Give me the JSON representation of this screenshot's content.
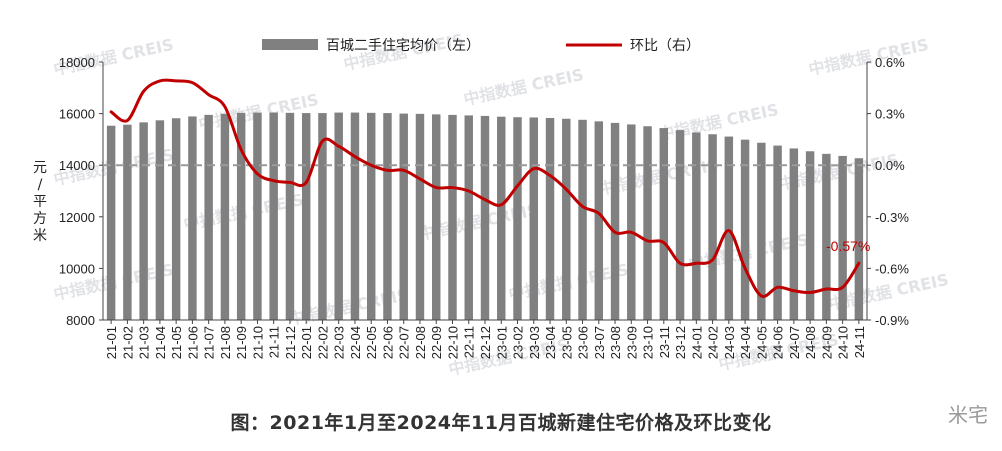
{
  "chart_data": {
    "type": "bar+line",
    "title": "图：2021年1月至2024年11月百城新建住宅价格及环比变化",
    "left_axis": {
      "label": "元/平方米",
      "ylim": [
        8000,
        18000
      ],
      "ticks": [
        "8000",
        "10000",
        "12000",
        "14000",
        "16000",
        "18000"
      ]
    },
    "right_axis": {
      "ylim": [
        -0.9,
        0.6
      ],
      "ticks": [
        "-0.9%",
        "-0.6%",
        "-0.3%",
        "0.0%",
        "0.3%",
        "0.6%"
      ]
    },
    "legend": [
      {
        "name": "百城二手住宅均价（左）",
        "color": "#808080",
        "kind": "bar"
      },
      {
        "name": "环比（右）",
        "color": "#c00000",
        "kind": "line"
      }
    ],
    "categories": [
      "21-01",
      "21-02",
      "21-03",
      "21-04",
      "21-05",
      "21-06",
      "21-07",
      "21-08",
      "21-09",
      "21-10",
      "21-11",
      "21-12",
      "22-01",
      "22-02",
      "22-03",
      "22-04",
      "22-05",
      "22-06",
      "22-07",
      "22-08",
      "22-09",
      "22-10",
      "22-11",
      "22-12",
      "23-01",
      "23-02",
      "23-03",
      "23-04",
      "23-05",
      "23-06",
      "23-07",
      "23-08",
      "23-09",
      "23-10",
      "23-11",
      "23-12",
      "24-01",
      "24-02",
      "24-03",
      "24-04",
      "24-05",
      "24-06",
      "24-07",
      "24-08",
      "24-09",
      "24-10",
      "24-11"
    ],
    "series": [
      {
        "name": "百城二手住宅均价（左）",
        "axis": "left",
        "type": "bar",
        "color": "#808080",
        "values": [
          15530,
          15570,
          15660,
          15740,
          15820,
          15890,
          15950,
          15990,
          16030,
          16040,
          16040,
          16030,
          16020,
          16020,
          16040,
          16040,
          16030,
          16020,
          16000,
          15990,
          15970,
          15950,
          15930,
          15910,
          15880,
          15860,
          15850,
          15830,
          15800,
          15760,
          15700,
          15640,
          15580,
          15510,
          15440,
          15360,
          15270,
          15200,
          15110,
          14990,
          14870,
          14760,
          14650,
          14540,
          14440,
          14360,
          14270
        ]
      },
      {
        "name": "环比（右）",
        "axis": "right",
        "type": "line",
        "color": "#c00000",
        "values": [
          0.31,
          0.26,
          0.43,
          0.49,
          0.49,
          0.48,
          0.41,
          0.34,
          0.09,
          -0.05,
          -0.09,
          -0.1,
          -0.1,
          0.14,
          0.11,
          0.05,
          0.0,
          -0.03,
          -0.03,
          -0.08,
          -0.13,
          -0.13,
          -0.15,
          -0.2,
          -0.23,
          -0.12,
          -0.02,
          -0.06,
          -0.14,
          -0.24,
          -0.28,
          -0.39,
          -0.39,
          -0.44,
          -0.45,
          -0.57,
          -0.57,
          -0.55,
          -0.38,
          -0.6,
          -0.76,
          -0.71,
          -0.73,
          -0.74,
          -0.72,
          -0.71,
          -0.57
        ]
      }
    ],
    "annotation": {
      "text": "-0.57%",
      "color": "#c00000"
    },
    "watermarks": [
      "中指数据 CREIS"
    ],
    "grid": false
  },
  "caption": "图：2021年1月至2024年11月百城新建住宅价格及环比变化",
  "brand": "米宅",
  "colors": {
    "bar": "#808080",
    "line": "#c00000",
    "zero_line": "#9a9a9a",
    "axis": "#444444"
  }
}
